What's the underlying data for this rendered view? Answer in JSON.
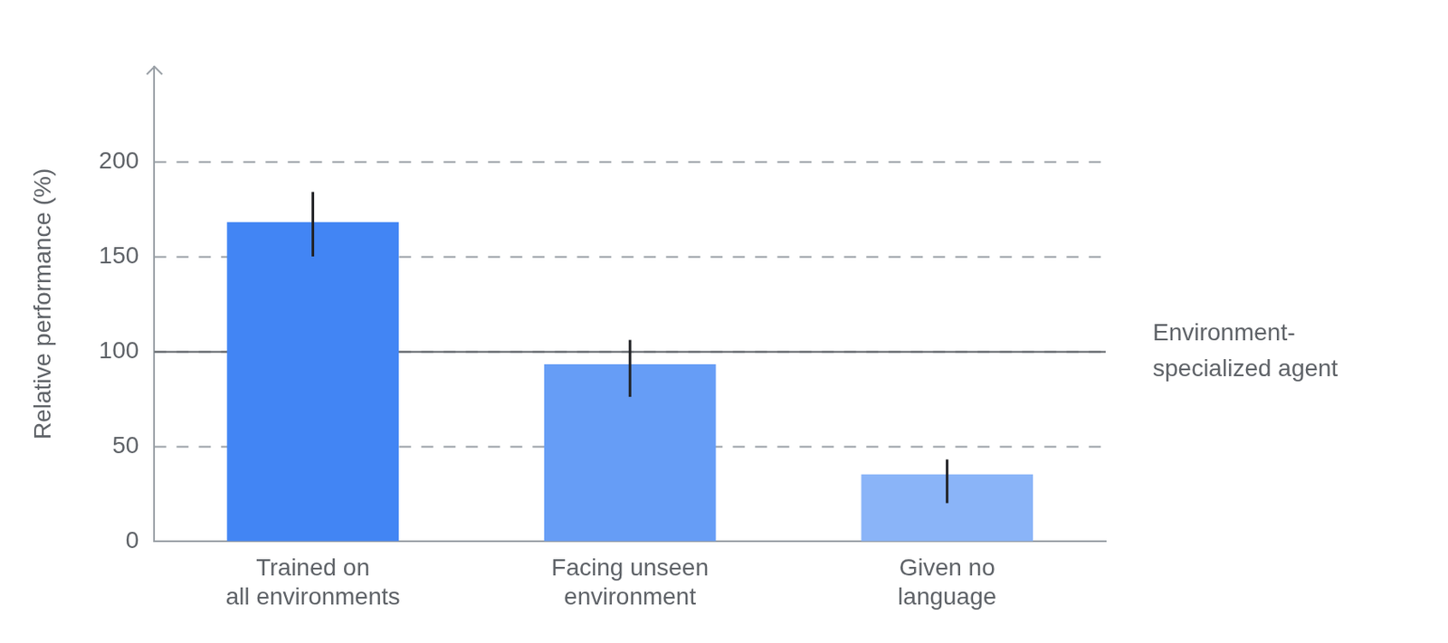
{
  "chart_data": {
    "type": "bar",
    "categories": [
      [
        "Trained on",
        "all environments"
      ],
      [
        "Facing unseen",
        "environment"
      ],
      [
        "Given no",
        "language"
      ]
    ],
    "values": [
      168,
      93,
      35
    ],
    "error_bars": [
      [
        150,
        184
      ],
      [
        76,
        106
      ],
      [
        20,
        43
      ]
    ],
    "colors": [
      "#4285f4",
      "#669df6",
      "#8ab4f8"
    ],
    "y_label": "Relative performance (%)",
    "ylim": [
      0,
      250
    ],
    "yticks": [
      0,
      50,
      100,
      150,
      200
    ],
    "grid": true,
    "annotations": [
      {
        "y": 100,
        "text": [
          "Environment-",
          "specialized agent"
        ]
      }
    ]
  }
}
